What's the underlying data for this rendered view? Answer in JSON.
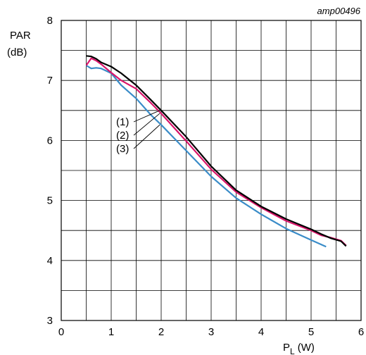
{
  "chart_data": {
    "type": "line",
    "reference": "amp00496",
    "xlabel_main": "P",
    "xlabel_sub": "L",
    "xlabel_unit": "(W)",
    "ylabel_line1": "PAR",
    "ylabel_line2": "(dB)",
    "xlim": [
      0,
      6
    ],
    "ylim": [
      3,
      8
    ],
    "x_ticks": [
      "0",
      "1",
      "2",
      "3",
      "4",
      "5",
      "6"
    ],
    "y_ticks": [
      "3",
      "4",
      "5",
      "6",
      "7",
      "8"
    ],
    "grid": true,
    "series": [
      {
        "name": "(1)",
        "color": "#000000",
        "x": [
          0.5,
          0.6,
          0.7,
          0.8,
          1.0,
          1.2,
          1.5,
          1.8,
          2.0,
          2.5,
          3.0,
          3.5,
          4.0,
          4.5,
          5.0,
          5.2,
          5.4,
          5.6,
          5.7
        ],
        "y": [
          7.41,
          7.4,
          7.36,
          7.3,
          7.23,
          7.12,
          6.92,
          6.67,
          6.5,
          6.06,
          5.57,
          5.17,
          4.9,
          4.69,
          4.52,
          4.44,
          4.37,
          4.32,
          4.24
        ]
      },
      {
        "name": "(2)",
        "color": "#d9156b",
        "x": [
          0.5,
          0.6,
          0.7,
          0.8,
          1.0,
          1.2,
          1.5,
          1.8,
          2.0,
          2.5,
          3.0,
          3.5,
          4.0,
          4.5,
          5.0,
          5.2,
          5.4,
          5.6,
          5.7
        ],
        "y": [
          7.25,
          7.37,
          7.33,
          7.27,
          7.13,
          7.0,
          6.86,
          6.62,
          6.45,
          5.99,
          5.52,
          5.14,
          4.88,
          4.66,
          4.5,
          4.42,
          4.38,
          4.33,
          4.25
        ]
      },
      {
        "name": "(3)",
        "color": "#3a8cc8",
        "x": [
          0.5,
          0.6,
          0.7,
          0.8,
          1.0,
          1.2,
          1.5,
          1.8,
          2.0,
          2.5,
          3.0,
          3.5,
          4.0,
          4.5,
          5.0,
          5.3
        ],
        "y": [
          7.25,
          7.2,
          7.21,
          7.2,
          7.12,
          6.92,
          6.7,
          6.42,
          6.26,
          5.83,
          5.4,
          5.04,
          4.77,
          4.53,
          4.34,
          4.23
        ]
      }
    ]
  }
}
